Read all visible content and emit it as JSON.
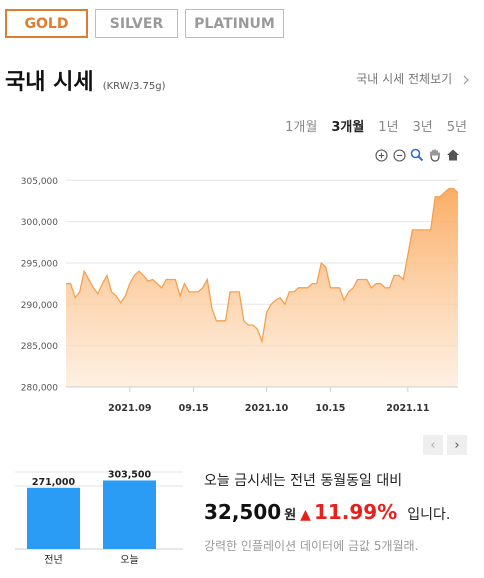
{
  "tabs": [
    {
      "label": "GOLD",
      "active": true
    },
    {
      "label": "SILVER",
      "active": false
    },
    {
      "label": "PLATINUM",
      "active": false
    }
  ],
  "header": {
    "title": "국내 시세",
    "unit": "(KRW/3.75g)",
    "more_link": "국내 시세 전체보기",
    "more_icon": "chevron-right-icon"
  },
  "periods": [
    {
      "label": "1개월",
      "active": false
    },
    {
      "label": "3개월",
      "active": true
    },
    {
      "label": "1년",
      "active": false
    },
    {
      "label": "3년",
      "active": false
    },
    {
      "label": "5년",
      "active": false
    }
  ],
  "chart_tools": [
    "zoom-in-icon",
    "zoom-out-icon",
    "magnify-icon",
    "pan-hand-icon",
    "home-icon"
  ],
  "pager": {
    "prev": "‹",
    "next": "›"
  },
  "colors": {
    "accent": "#e07c2e",
    "line": "#f5a04e",
    "up": "#e8201c",
    "bar": "#2a9cf5"
  },
  "chart_data": [
    {
      "type": "area",
      "title": "",
      "xlabel": "",
      "ylabel": "",
      "ylim": [
        280000,
        306000
      ],
      "yticks": [
        280000,
        285000,
        290000,
        295000,
        300000,
        305000
      ],
      "ytick_labels": [
        "280,000",
        "285,000",
        "290,000",
        "295,000",
        "300,000",
        "305,000"
      ],
      "xticks": [
        {
          "date": "2021-09-01",
          "label": "2021.09"
        },
        {
          "date": "2021-09-15",
          "label": "09.15"
        },
        {
          "date": "2021-10-01",
          "label": "2021.10"
        },
        {
          "date": "2021-10-15",
          "label": "10.15"
        },
        {
          "date": "2021-11-01",
          "label": "2021.11"
        }
      ],
      "grid": true,
      "series": [
        {
          "points": [
            [
              "2021-08-18",
              292500
            ],
            [
              "2021-08-19",
              292500
            ],
            [
              "2021-08-20",
              290800
            ],
            [
              "2021-08-21",
              291500
            ],
            [
              "2021-08-22",
              294000
            ],
            [
              "2021-08-23",
              293000
            ],
            [
              "2021-08-24",
              292000
            ],
            [
              "2021-08-25",
              291300
            ],
            [
              "2021-08-26",
              292500
            ],
            [
              "2021-08-27",
              293500
            ],
            [
              "2021-08-28",
              291500
            ],
            [
              "2021-08-29",
              291000
            ],
            [
              "2021-08-30",
              290200
            ],
            [
              "2021-08-31",
              291000
            ],
            [
              "2021-09-01",
              292500
            ],
            [
              "2021-09-02",
              293500
            ],
            [
              "2021-09-03",
              294000
            ],
            [
              "2021-09-04",
              293500
            ],
            [
              "2021-09-05",
              292800
            ],
            [
              "2021-09-06",
              293000
            ],
            [
              "2021-09-07",
              292500
            ],
            [
              "2021-09-08",
              292000
            ],
            [
              "2021-09-09",
              293000
            ],
            [
              "2021-09-10",
              293000
            ],
            [
              "2021-09-11",
              293000
            ],
            [
              "2021-09-12",
              291000
            ],
            [
              "2021-09-13",
              292500
            ],
            [
              "2021-09-14",
              291500
            ],
            [
              "2021-09-15",
              291500
            ],
            [
              "2021-09-16",
              291500
            ],
            [
              "2021-09-17",
              292000
            ],
            [
              "2021-09-18",
              293000
            ],
            [
              "2021-09-19",
              289500
            ],
            [
              "2021-09-20",
              288000
            ],
            [
              "2021-09-21",
              288000
            ],
            [
              "2021-09-22",
              288000
            ],
            [
              "2021-09-23",
              291500
            ],
            [
              "2021-09-24",
              291500
            ],
            [
              "2021-09-25",
              291500
            ],
            [
              "2021-09-26",
              288000
            ],
            [
              "2021-09-27",
              287500
            ],
            [
              "2021-09-28",
              287500
            ],
            [
              "2021-09-29",
              287000
            ],
            [
              "2021-09-30",
              285500
            ],
            [
              "2021-10-01",
              289000
            ],
            [
              "2021-10-02",
              290000
            ],
            [
              "2021-10-03",
              290500
            ],
            [
              "2021-10-04",
              290800
            ],
            [
              "2021-10-05",
              290000
            ],
            [
              "2021-10-06",
              291500
            ],
            [
              "2021-10-07",
              291500
            ],
            [
              "2021-10-08",
              292000
            ],
            [
              "2021-10-09",
              292000
            ],
            [
              "2021-10-10",
              292000
            ],
            [
              "2021-10-11",
              292500
            ],
            [
              "2021-10-12",
              292500
            ],
            [
              "2021-10-13",
              295000
            ],
            [
              "2021-10-14",
              294500
            ],
            [
              "2021-10-15",
              292000
            ],
            [
              "2021-10-16",
              292000
            ],
            [
              "2021-10-17",
              292000
            ],
            [
              "2021-10-18",
              290500
            ],
            [
              "2021-10-19",
              291500
            ],
            [
              "2021-10-20",
              292000
            ],
            [
              "2021-10-21",
              293000
            ],
            [
              "2021-10-22",
              293000
            ],
            [
              "2021-10-23",
              293000
            ],
            [
              "2021-10-24",
              292000
            ],
            [
              "2021-10-25",
              292500
            ],
            [
              "2021-10-26",
              292500
            ],
            [
              "2021-10-27",
              292000
            ],
            [
              "2021-10-28",
              292000
            ],
            [
              "2021-10-29",
              293500
            ],
            [
              "2021-10-30",
              293500
            ],
            [
              "2021-10-31",
              293000
            ],
            [
              "2021-11-01",
              296000
            ],
            [
              "2021-11-02",
              299000
            ],
            [
              "2021-11-03",
              299000
            ],
            [
              "2021-11-04",
              299000
            ],
            [
              "2021-11-05",
              299000
            ],
            [
              "2021-11-06",
              299000
            ],
            [
              "2021-11-07",
              303000
            ],
            [
              "2021-11-08",
              303000
            ],
            [
              "2021-11-09",
              303500
            ],
            [
              "2021-11-10",
              304000
            ],
            [
              "2021-11-11",
              304000
            ],
            [
              "2021-11-12",
              303500
            ]
          ]
        }
      ]
    },
    {
      "type": "bar",
      "title": "",
      "categories": [
        "전년",
        "오늘"
      ],
      "values": [
        271000,
        303500
      ],
      "value_labels": [
        "271,000",
        "303,500"
      ]
    }
  ],
  "summary": {
    "line1": "오늘 금시세는 전년 동월동일 대비",
    "diff_amount": "32,500",
    "won": "원",
    "arrow": "▲",
    "percent": "11.99%",
    "tail": "입니다.",
    "line3": "강력한 인플레이션 데이터에 금값 5개월래."
  }
}
